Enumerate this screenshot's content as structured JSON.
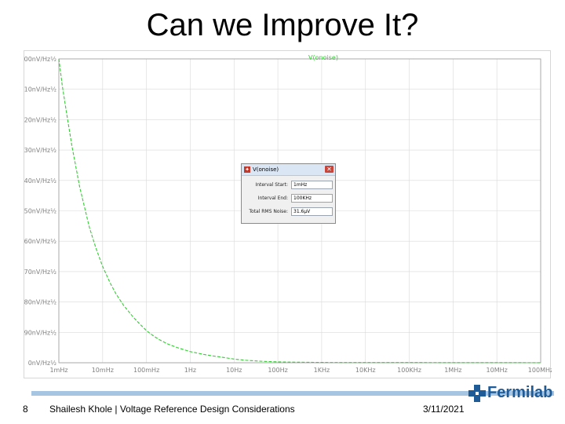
{
  "slide": {
    "title": "Can we Improve It?",
    "page_number": "8",
    "footer_text": "Shailesh Khole | Voltage Reference Design Considerations",
    "date": "3/11/2021",
    "logo_text": "Fermilab"
  },
  "colors": {
    "trace": "#33cc33",
    "grid": "#d9d9d9",
    "axis_text": "#808080",
    "footer_bar": "#a6c5e2",
    "logo": "#1f5b96"
  },
  "icons": [
    "fermilab-logo-icon",
    "ltspice-icon",
    "close-icon"
  ],
  "chart_data": {
    "type": "line",
    "title": "V(onoise)",
    "xscale": "log",
    "x_tick_labels": [
      "1mHz",
      "10mHz",
      "100mHz",
      "1Hz",
      "10Hz",
      "100Hz",
      "1KHz",
      "10KHz",
      "100KHz",
      "1MHz",
      "10MHz",
      "100MHz"
    ],
    "x_tick_values": [
      0.001,
      0.01,
      0.1,
      1,
      10,
      100,
      1000,
      10000,
      100000,
      1000000,
      10000000,
      100000000
    ],
    "y_tick_labels": [
      "0nV/Hz½",
      "90nV/Hz½",
      "180nV/Hz½",
      "270nV/Hz½",
      "360nV/Hz½",
      "450nV/Hz½",
      "540nV/Hz½",
      "630nV/Hz½",
      "720nV/Hz½",
      "810nV/Hz½",
      "900nV/Hz½"
    ],
    "ylim": [
      0,
      900
    ],
    "grid": true,
    "series": [
      {
        "x": [
          0.001,
          0.0012,
          0.0015,
          0.002,
          0.003,
          0.005,
          0.007,
          0.01,
          0.015,
          0.02,
          0.03,
          0.05,
          0.07,
          0.1,
          0.15,
          0.2,
          0.3,
          0.5,
          0.7,
          1,
          2,
          3,
          5,
          7,
          10,
          15,
          20,
          30,
          50,
          70,
          100,
          200,
          1000,
          10000,
          100000,
          1000000,
          10000000,
          100000000
        ],
        "values": [
          900,
          820,
          740,
          640,
          520,
          400,
          340,
          285,
          235,
          205,
          170,
          135,
          115,
          95,
          78,
          68,
          56,
          45,
          39,
          33,
          25,
          21,
          17,
          14,
          11,
          8.5,
          7,
          5.5,
          4,
          3.2,
          2.5,
          1.8,
          1,
          0.8,
          0.6,
          0.5,
          0.4,
          0.3
        ]
      }
    ]
  },
  "dialog": {
    "title": "V(onoise)",
    "rows": [
      {
        "label": "Interval Start:",
        "value": "1mHz"
      },
      {
        "label": "Interval End:",
        "value": "100KHz"
      },
      {
        "label": "Total RMS Noise:",
        "value": "31.6µV"
      }
    ]
  }
}
